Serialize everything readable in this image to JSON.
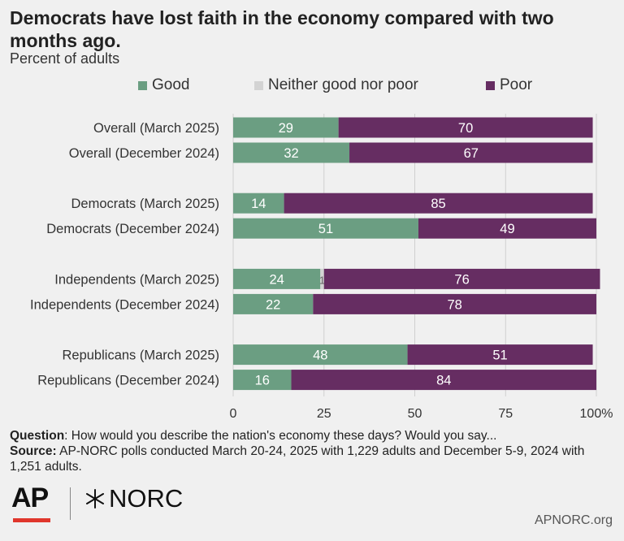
{
  "chart_data": {
    "type": "bar",
    "orientation": "horizontal",
    "stacked": true,
    "title": "Democrats have lost faith in the economy compared with two months ago.",
    "subtitle": "Percent of adults",
    "categories": [
      "Overall (March 2025)",
      "Overall (December 2024)",
      "Democrats (March 2025)",
      "Democrats (December 2024)",
      "Independents (March 2025)",
      "Independents (December 2024)",
      "Republicans (March 2025)",
      "Republicans (December 2024)"
    ],
    "series": [
      {
        "name": "Good",
        "color": "#6b9e82",
        "values": [
          29,
          32,
          14,
          51,
          24,
          22,
          48,
          16
        ]
      },
      {
        "name": "Neither good nor poor",
        "color": "#d3d3d3",
        "values": [
          0,
          0,
          0,
          0,
          1,
          0,
          0,
          0
        ]
      },
      {
        "name": "Poor",
        "color": "#662d62",
        "values": [
          70,
          67,
          85,
          49,
          76,
          78,
          51,
          84
        ]
      }
    ],
    "xlim": [
      0,
      100
    ],
    "xticks": [
      "0",
      "25",
      "50",
      "75",
      "100%"
    ],
    "grid": true,
    "legend_position": "top"
  },
  "footer": {
    "question_label": "Question",
    "question_text": ": How would you describe the nation's economy these days? Would you say...",
    "source_label": "Source:",
    "source_text": " AP-NORC polls conducted March 20-24, 2025 with 1,229 adults and December 5-9, 2024 with 1,251 adults."
  },
  "logos": {
    "ap": "AP",
    "norc": "NORC",
    "site": "APNORC.org"
  }
}
